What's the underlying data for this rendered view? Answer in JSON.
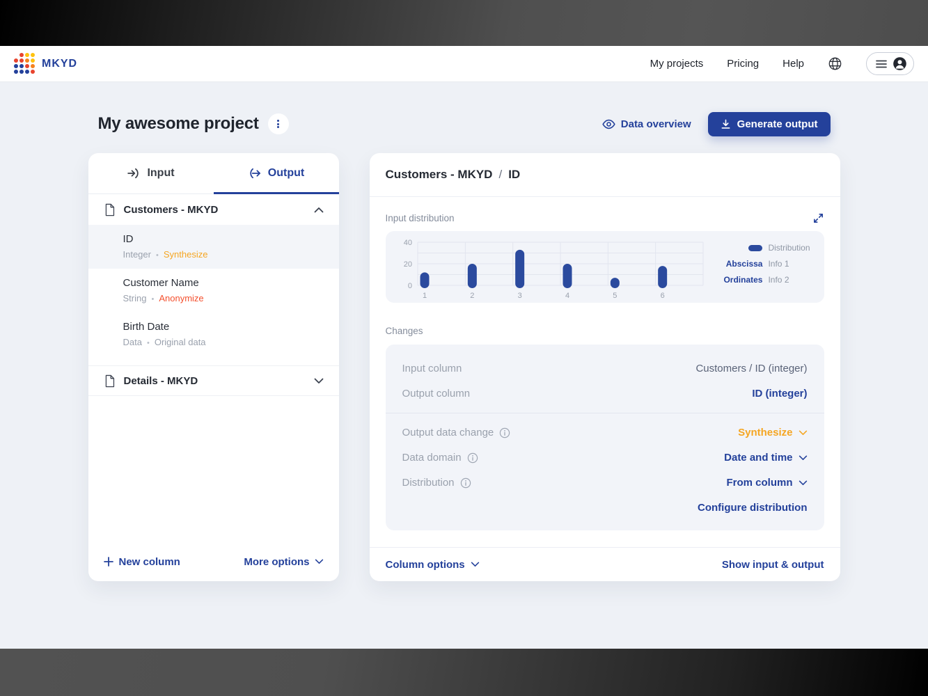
{
  "colors": {
    "accent_navy": "#24419b",
    "bar_fill": "#2b4a9e",
    "synthesize_amber": "#f5a623",
    "anonymize_red": "#f4502e",
    "muted_text": "#9aa1ad",
    "page_bg": "#eef1f6",
    "card_inner_bg": "#f2f4f9",
    "logo_palette": [
      "#24419b",
      "#e8442e",
      "#f5821e",
      "#ffc20e"
    ]
  },
  "navbar": {
    "brand": "MKYD",
    "links": [
      {
        "label": "My projects"
      },
      {
        "label": "Pricing"
      },
      {
        "label": "Help"
      }
    ],
    "icons": [
      "globe-icon",
      "menu-icon",
      "user-avatar-icon"
    ]
  },
  "header": {
    "title": "My awesome project",
    "menu_icon": "kebab-vertical-icon",
    "actions": {
      "data_overview": "Data overview",
      "data_overview_icon": "eye-icon",
      "generate_output": "Generate output",
      "generate_icon": "download-icon"
    }
  },
  "left_panel": {
    "tabs": [
      {
        "label": "Input",
        "icon": "sign-in-icon",
        "active": false
      },
      {
        "label": "Output",
        "icon": "sign-out-icon",
        "active": true
      }
    ],
    "groups": [
      {
        "label": "Customers - MKYD",
        "icon": "file-icon",
        "state": "expanded",
        "columns": [
          {
            "name": "ID",
            "type": "Integer",
            "action": "Synthesize",
            "action_style": "amber",
            "selected": true
          },
          {
            "name": "Customer Name",
            "type": "String",
            "action": "Anonymize",
            "action_style": "red",
            "selected": false
          },
          {
            "name": "Birth Date",
            "type": "Data",
            "action": "Original data",
            "action_style": "gray",
            "selected": false
          }
        ]
      },
      {
        "label": "Details - MKYD",
        "icon": "file-icon",
        "state": "collapsed",
        "columns": []
      }
    ],
    "footer": {
      "new_column": "New column",
      "more_options": "More options"
    }
  },
  "right_panel": {
    "breadcrumb": {
      "parent": "Customers - MKYD",
      "separator": "/",
      "current": "ID"
    },
    "section_label": "Input distribution",
    "expand_icon": "expand-diagonal-icon",
    "changes_label": "Changes",
    "rows": [
      {
        "label": "Input column",
        "value": "Customers / ID (integer)",
        "value_style": "muted",
        "info": false,
        "dropdown": false
      },
      {
        "label": "Output column",
        "value": "ID (integer)",
        "value_style": "navy",
        "info": false,
        "dropdown": false
      },
      {
        "label": "Output data change",
        "value": "Synthesize",
        "value_style": "amber",
        "info": true,
        "dropdown": true
      },
      {
        "label": "Data domain",
        "value": "Date and time",
        "value_style": "navy",
        "info": true,
        "dropdown": true
      },
      {
        "label": "Distribution",
        "value": "From column",
        "value_style": "navy",
        "info": true,
        "dropdown": true
      }
    ],
    "configure_link": "Configure distribution",
    "footer": {
      "column_options": "Column options",
      "show_io": "Show input & output"
    }
  },
  "chart_data": {
    "type": "bar",
    "title": "Input distribution",
    "categories": [
      "1",
      "2",
      "3",
      "4",
      "5",
      "6"
    ],
    "values": [
      12,
      20,
      33,
      20,
      7,
      18
    ],
    "xlabel": "",
    "ylabel": "",
    "ylim": [
      0,
      40
    ],
    "yticks": [
      0,
      20,
      40
    ],
    "grid": true,
    "bar_color": "#2b4a9e",
    "bar_shape": "rounded-pill",
    "legend_position": "right",
    "legend": [
      {
        "swatch": "pill",
        "label": "Distribution"
      }
    ],
    "annotations": [
      {
        "term": "Abscissa",
        "value": "Info 1"
      },
      {
        "term": "Ordinates",
        "value": "Info 2"
      }
    ]
  }
}
